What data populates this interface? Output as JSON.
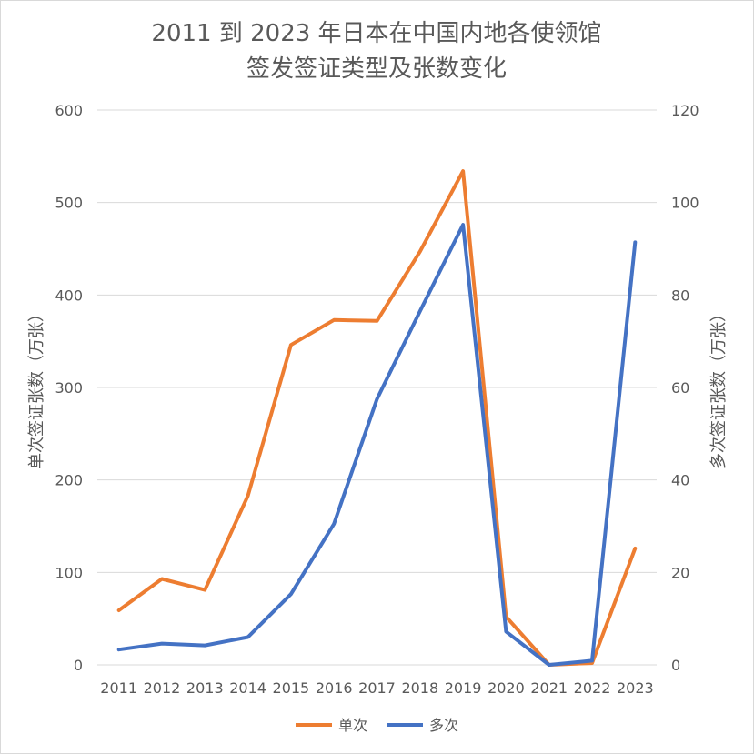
{
  "chart_data": {
    "type": "line",
    "title": [
      "2011 到 2023 年日本在中国内地各使领馆",
      "签发签证类型及张数变化"
    ],
    "categories": [
      "2011",
      "2012",
      "2013",
      "2014",
      "2015",
      "2016",
      "2017",
      "2018",
      "2019",
      "2020",
      "2021",
      "2022",
      "2023"
    ],
    "ylabel_left": "单次签证张数（万张）",
    "ylabel_right": "多次签证张数（万张）",
    "ylim_left": [
      0,
      600
    ],
    "ylim_right": [
      0,
      120
    ],
    "yticks_left": [
      0,
      100,
      200,
      300,
      400,
      500,
      600
    ],
    "yticks_right": [
      0,
      20,
      40,
      60,
      80,
      100,
      120
    ],
    "grid": true,
    "legend_position": "bottom",
    "series": [
      {
        "name": "单次",
        "axis": "left",
        "color": "#ED7D31",
        "values": [
          59,
          93,
          81,
          183,
          346,
          373,
          372,
          447,
          534,
          52,
          0,
          2,
          126
        ]
      },
      {
        "name": "多次",
        "axis": "right",
        "color": "#4472C4",
        "values": [
          3.3,
          4.6,
          4.2,
          6.0,
          15.3,
          30.5,
          57.5,
          76.5,
          95.2,
          7.2,
          0.0,
          0.9,
          91.4
        ]
      }
    ]
  }
}
